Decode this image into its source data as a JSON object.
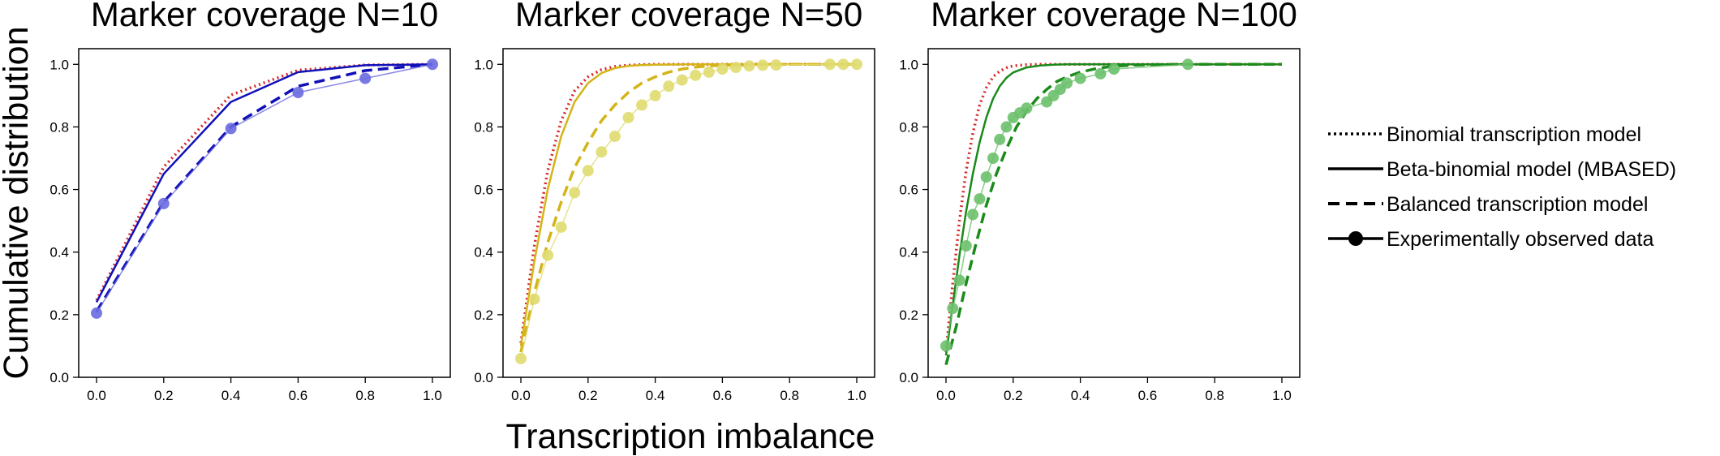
{
  "figure": {
    "ylabel": "Cumulative distribution",
    "xlabel": "Transcription imbalance"
  },
  "legend": {
    "items": [
      {
        "label": "Binomial transcription model",
        "style": "dotted"
      },
      {
        "label": "Beta-binomial model (MBASED)",
        "style": "solid"
      },
      {
        "label": "Balanced transcription model",
        "style": "dashed"
      },
      {
        "label": "Experimentally observed data",
        "style": "marker"
      }
    ]
  },
  "chart_data": [
    {
      "type": "line",
      "title": "Marker coverage N=10",
      "xlim": [
        0,
        1
      ],
      "ylim": [
        0,
        1.05
      ],
      "xticks": [
        0.0,
        0.2,
        0.4,
        0.6,
        0.8,
        1.0
      ],
      "yticks": [
        0.0,
        0.2,
        0.4,
        0.6,
        0.8,
        1.0
      ],
      "grid": false,
      "colors": {
        "dotted": "#d62728",
        "model": "#1010b8",
        "observed": "#6a6ae0"
      },
      "series": [
        {
          "name": "Binomial transcription model",
          "style": "dotted",
          "x": [
            0.0,
            0.2,
            0.4,
            0.6,
            0.8,
            1.0
          ],
          "y": [
            0.246,
            0.672,
            0.902,
            0.981,
            0.998,
            1.0
          ]
        },
        {
          "name": "Beta-binomial model (MBASED)",
          "style": "solid",
          "x": [
            0.0,
            0.2,
            0.4,
            0.6,
            0.8,
            1.0
          ],
          "y": [
            0.24,
            0.65,
            0.88,
            0.975,
            0.997,
            1.0
          ]
        },
        {
          "name": "Balanced transcription model",
          "style": "dashed",
          "x": [
            0.0,
            0.2,
            0.4,
            0.6,
            0.8,
            1.0
          ],
          "y": [
            0.21,
            0.56,
            0.8,
            0.93,
            0.98,
            1.0
          ]
        },
        {
          "name": "Experimentally observed data",
          "style": "marker",
          "x": [
            0.0,
            0.2,
            0.4,
            0.6,
            0.8,
            1.0
          ],
          "y": [
            0.205,
            0.555,
            0.795,
            0.91,
            0.955,
            1.0
          ]
        }
      ]
    },
    {
      "type": "line",
      "title": "Marker coverage N=50",
      "xlim": [
        0,
        1
      ],
      "ylim": [
        0,
        1.05
      ],
      "xticks": [
        0.0,
        0.2,
        0.4,
        0.6,
        0.8,
        1.0
      ],
      "yticks": [
        0.0,
        0.2,
        0.4,
        0.6,
        0.8,
        1.0
      ],
      "grid": false,
      "colors": {
        "dotted": "#d62728",
        "model": "#d4b418",
        "observed": "#e0dc70"
      },
      "series": [
        {
          "name": "Binomial transcription model",
          "style": "dotted",
          "x": [
            0.0,
            0.04,
            0.08,
            0.12,
            0.16,
            0.2,
            0.24,
            0.28,
            0.32,
            0.36,
            0.4,
            0.5,
            0.6,
            1.0
          ],
          "y": [
            0.11,
            0.42,
            0.66,
            0.82,
            0.915,
            0.96,
            0.983,
            0.993,
            0.997,
            0.999,
            1.0,
            1.0,
            1.0,
            1.0
          ]
        },
        {
          "name": "Beta-binomial model (MBASED)",
          "style": "solid",
          "x": [
            0.0,
            0.04,
            0.08,
            0.12,
            0.16,
            0.2,
            0.24,
            0.28,
            0.32,
            0.36,
            0.4,
            0.5,
            0.6,
            1.0
          ],
          "y": [
            0.1,
            0.37,
            0.6,
            0.77,
            0.88,
            0.94,
            0.972,
            0.988,
            0.995,
            0.998,
            0.999,
            1.0,
            1.0,
            1.0
          ]
        },
        {
          "name": "Balanced transcription model",
          "style": "dashed",
          "x": [
            0.0,
            0.04,
            0.08,
            0.12,
            0.16,
            0.2,
            0.24,
            0.28,
            0.32,
            0.36,
            0.4,
            0.44,
            0.48,
            0.52,
            0.56,
            0.6,
            0.7,
            0.8,
            1.0
          ],
          "y": [
            0.08,
            0.27,
            0.43,
            0.56,
            0.67,
            0.75,
            0.82,
            0.87,
            0.91,
            0.94,
            0.96,
            0.975,
            0.985,
            0.991,
            0.995,
            0.997,
            0.999,
            1.0,
            1.0
          ]
        },
        {
          "name": "Experimentally observed data",
          "style": "marker",
          "x": [
            0.0,
            0.04,
            0.08,
            0.12,
            0.16,
            0.2,
            0.24,
            0.28,
            0.32,
            0.36,
            0.4,
            0.44,
            0.48,
            0.52,
            0.56,
            0.6,
            0.64,
            0.68,
            0.72,
            0.76,
            0.92,
            0.96,
            1.0
          ],
          "y": [
            0.06,
            0.25,
            0.39,
            0.48,
            0.59,
            0.66,
            0.72,
            0.77,
            0.83,
            0.87,
            0.9,
            0.93,
            0.95,
            0.965,
            0.975,
            0.985,
            0.99,
            0.995,
            0.997,
            0.998,
            1.0,
            1.0,
            1.0
          ]
        }
      ]
    },
    {
      "type": "line",
      "title": "Marker coverage N=100",
      "xlim": [
        0,
        1
      ],
      "ylim": [
        0,
        1.05
      ],
      "xticks": [
        0.0,
        0.2,
        0.4,
        0.6,
        0.8,
        1.0
      ],
      "yticks": [
        0.0,
        0.2,
        0.4,
        0.6,
        0.8,
        1.0
      ],
      "grid": false,
      "colors": {
        "dotted": "#d62728",
        "model": "#1a8a1a",
        "observed": "#6cc06c"
      },
      "series": [
        {
          "name": "Binomial transcription model",
          "style": "dotted",
          "x": [
            0.0,
            0.02,
            0.04,
            0.06,
            0.08,
            0.1,
            0.12,
            0.14,
            0.16,
            0.18,
            0.2,
            0.24,
            0.28,
            0.32,
            0.4,
            1.0
          ],
          "y": [
            0.08,
            0.3,
            0.5,
            0.66,
            0.78,
            0.87,
            0.925,
            0.96,
            0.978,
            0.989,
            0.995,
            0.999,
            1.0,
            1.0,
            1.0,
            1.0
          ]
        },
        {
          "name": "Beta-binomial model (MBASED)",
          "style": "solid",
          "x": [
            0.0,
            0.02,
            0.04,
            0.06,
            0.08,
            0.1,
            0.12,
            0.14,
            0.16,
            0.18,
            0.2,
            0.24,
            0.28,
            0.32,
            0.36,
            0.4,
            1.0
          ],
          "y": [
            0.07,
            0.23,
            0.39,
            0.53,
            0.65,
            0.75,
            0.83,
            0.89,
            0.93,
            0.957,
            0.974,
            0.99,
            0.996,
            0.999,
            1.0,
            1.0,
            1.0
          ]
        },
        {
          "name": "Balanced transcription model",
          "style": "dashed",
          "x": [
            0.0,
            0.03,
            0.06,
            0.09,
            0.12,
            0.15,
            0.18,
            0.21,
            0.24,
            0.27,
            0.3,
            0.33,
            0.36,
            0.4,
            0.45,
            0.5,
            0.55,
            0.6,
            0.7,
            1.0
          ],
          "y": [
            0.04,
            0.16,
            0.3,
            0.43,
            0.55,
            0.65,
            0.73,
            0.8,
            0.85,
            0.89,
            0.92,
            0.945,
            0.96,
            0.975,
            0.987,
            0.994,
            0.997,
            0.999,
            1.0,
            1.0
          ]
        },
        {
          "name": "Experimentally observed data",
          "style": "marker",
          "x": [
            0.0,
            0.02,
            0.04,
            0.06,
            0.08,
            0.1,
            0.12,
            0.14,
            0.16,
            0.18,
            0.2,
            0.22,
            0.24,
            0.3,
            0.32,
            0.34,
            0.36,
            0.4,
            0.46,
            0.5,
            0.72
          ],
          "y": [
            0.1,
            0.22,
            0.31,
            0.42,
            0.52,
            0.57,
            0.64,
            0.7,
            0.76,
            0.8,
            0.83,
            0.845,
            0.86,
            0.88,
            0.9,
            0.92,
            0.94,
            0.955,
            0.97,
            0.985,
            1.0
          ]
        }
      ]
    }
  ]
}
